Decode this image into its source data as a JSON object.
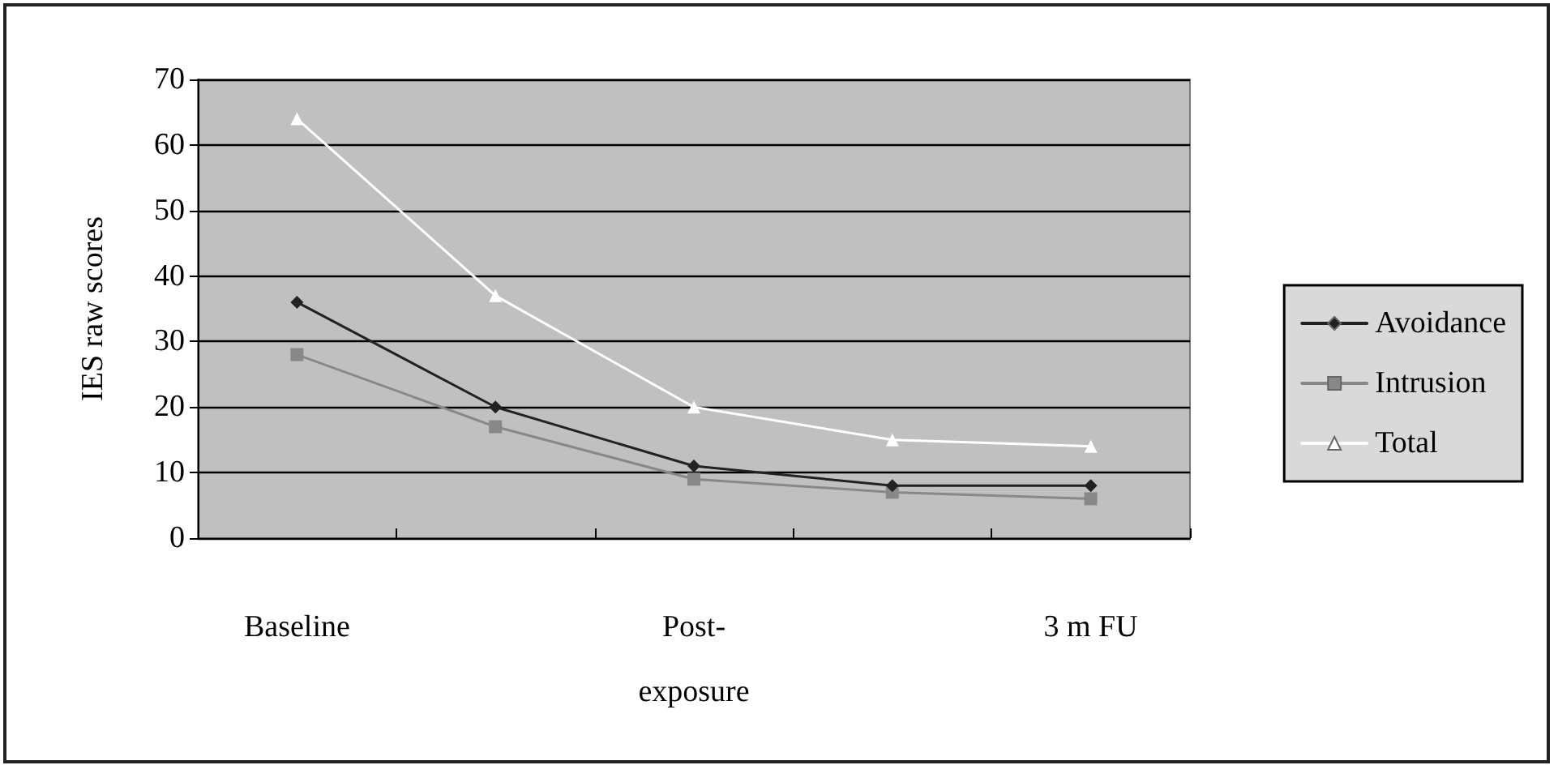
{
  "chart_data": {
    "type": "line",
    "ylabel": "IES raw scores",
    "categories": [
      "Baseline",
      null,
      "Post-exposure",
      null,
      "3 m FU"
    ],
    "series": [
      {
        "name": "Avoidance",
        "color": "#222222",
        "marker": "diamond",
        "values": [
          36,
          20,
          11,
          8,
          8
        ]
      },
      {
        "name": "Intrusion",
        "color": "#888888",
        "marker": "square",
        "values": [
          28,
          17,
          9,
          7,
          6
        ]
      },
      {
        "name": "Total",
        "color": "#ffffff",
        "marker": "triangle",
        "values": [
          64,
          37,
          20,
          15,
          14
        ]
      }
    ],
    "ylim": [
      0,
      70
    ],
    "yticks": [
      0,
      10,
      20,
      30,
      40,
      50,
      60,
      70
    ],
    "grid": "y",
    "legend": "right",
    "line_style": "solid"
  }
}
